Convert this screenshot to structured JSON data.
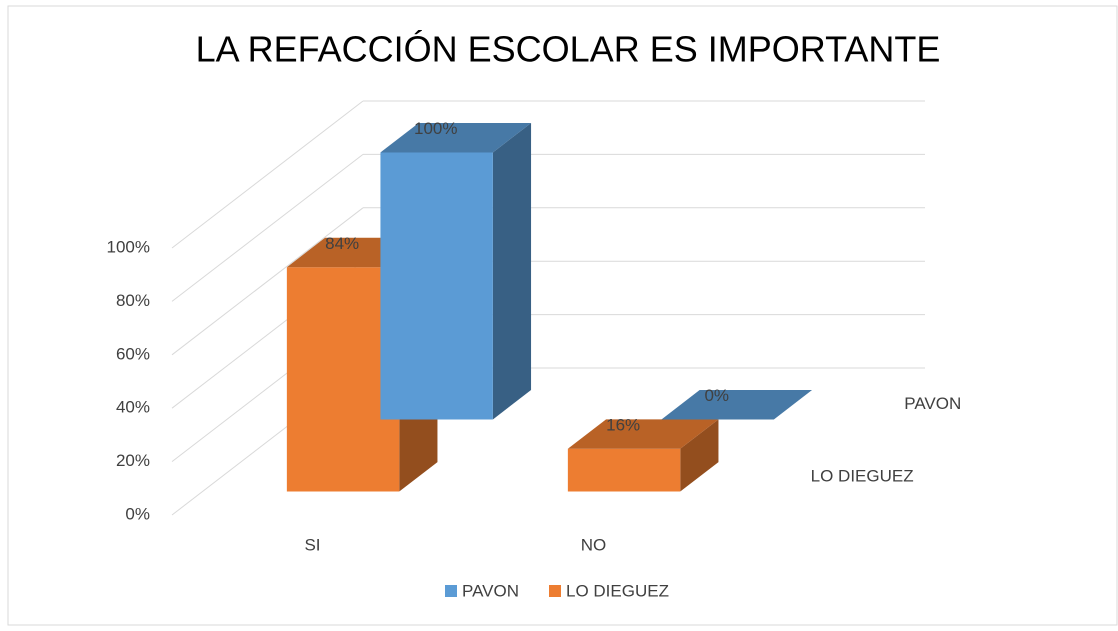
{
  "chart_data": {
    "type": "bar3d",
    "title": "LA REFACCIÓN ESCOLAR ES IMPORTANTE",
    "categories": [
      "SI",
      "NO"
    ],
    "series": [
      {
        "name": "PAVON",
        "color": "#5b9bd5",
        "values": [
          100,
          0
        ],
        "value_labels": [
          "100%",
          "0%"
        ]
      },
      {
        "name": "LO DIEGUEZ",
        "color": "#ed7d31",
        "values": [
          84,
          16
        ],
        "value_labels": [
          "84%",
          "16%"
        ]
      }
    ],
    "ylim": [
      0,
      100
    ],
    "yticks": [
      {
        "value": 0,
        "label": "0%"
      },
      {
        "value": 20,
        "label": "20%"
      },
      {
        "value": 40,
        "label": "40%"
      },
      {
        "value": 60,
        "label": "60%"
      },
      {
        "value": 80,
        "label": "80%"
      },
      {
        "value": 100,
        "label": "100%"
      }
    ],
    "grid": true,
    "legend": "bottom"
  }
}
